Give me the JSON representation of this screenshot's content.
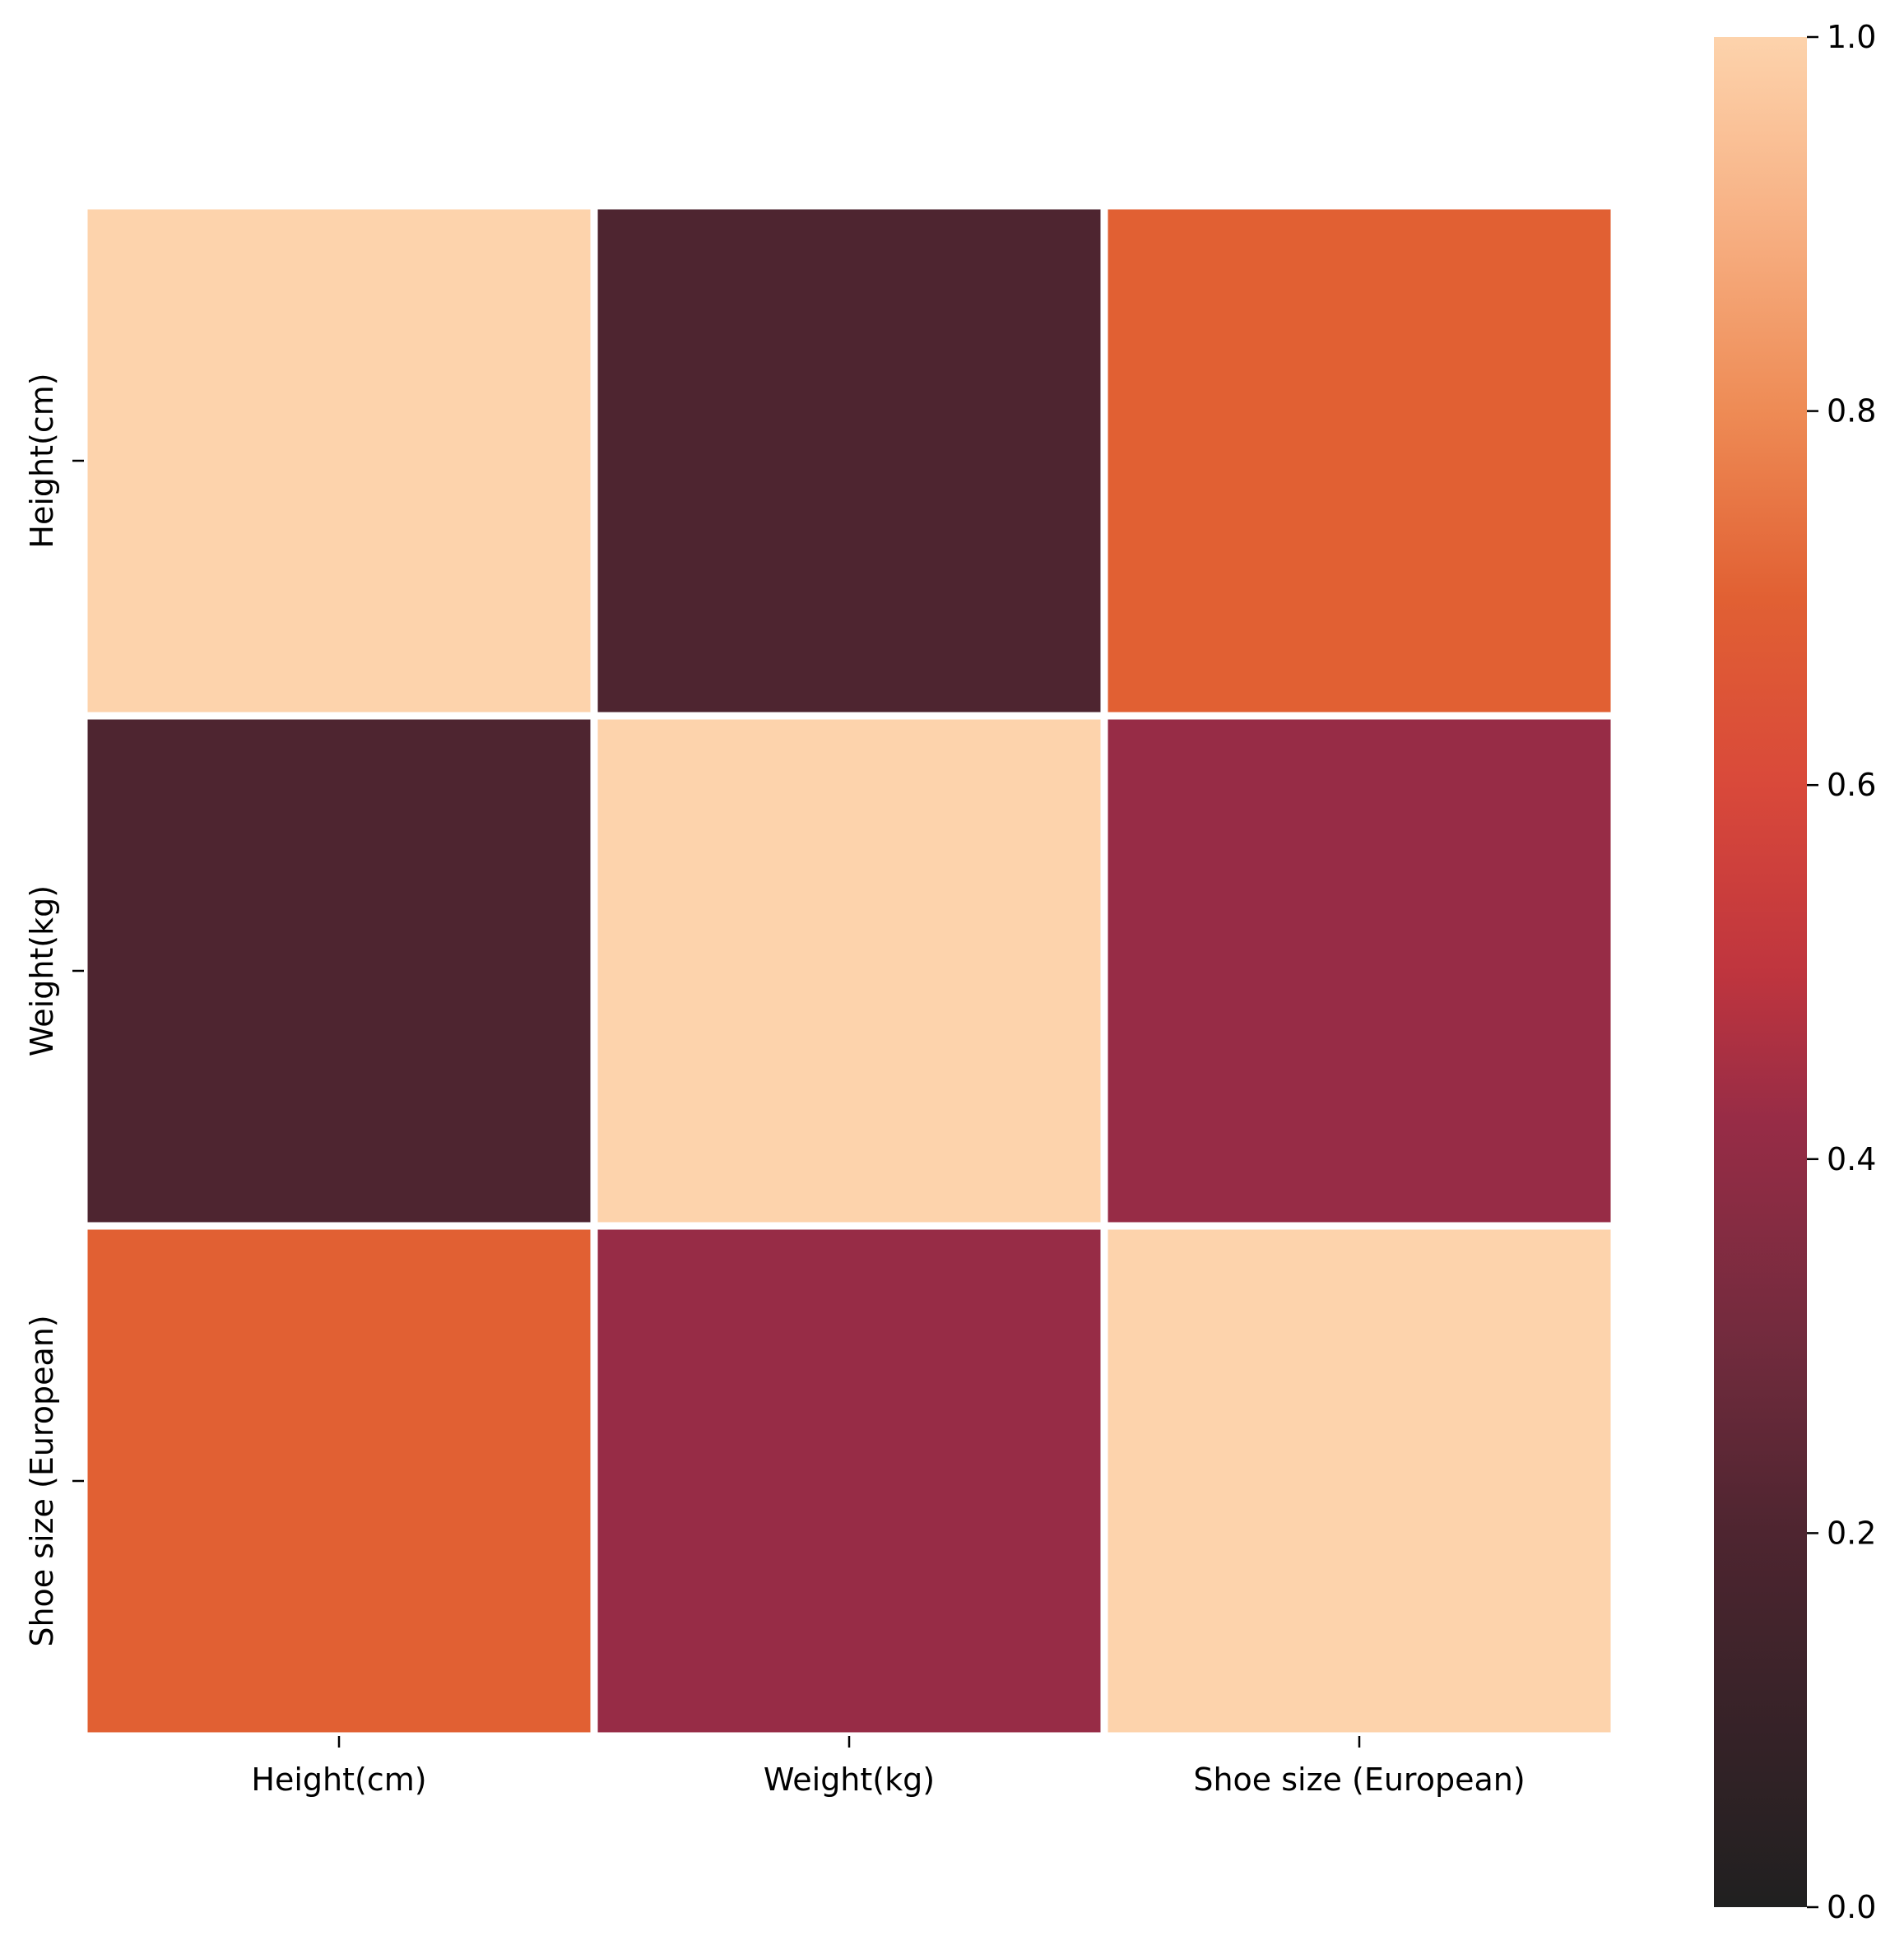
{
  "chart_data": {
    "type": "heatmap",
    "title": "",
    "xlabel": "",
    "ylabel": "",
    "x_categories": [
      "Height(cm)",
      "Weight(kg)",
      "Shoe size (European)"
    ],
    "y_categories": [
      "Height(cm)",
      "Weight(kg)",
      "Shoe size (European)"
    ],
    "values": [
      [
        1.0,
        0.2,
        0.7
      ],
      [
        0.2,
        1.0,
        0.42
      ],
      [
        0.7,
        0.42,
        1.0
      ]
    ],
    "colorbar": {
      "vmin": 0.0,
      "vmax": 1.0,
      "ticks": [
        "0.0",
        "0.2",
        "0.4",
        "0.6",
        "0.8",
        "1.0"
      ]
    },
    "colormap_stops": [
      {
        "value": 0.0,
        "color": "#202020"
      },
      {
        "value": 0.2,
        "color": "#4e2530"
      },
      {
        "value": 0.3,
        "color": "#712b3d"
      },
      {
        "value": 0.42,
        "color": "#972c46"
      },
      {
        "value": 0.5,
        "color": "#bf353e"
      },
      {
        "value": 0.6,
        "color": "#d9493a"
      },
      {
        "value": 0.7,
        "color": "#e16033"
      },
      {
        "value": 0.8,
        "color": "#ee8b55"
      },
      {
        "value": 0.9,
        "color": "#f7b083"
      },
      {
        "value": 1.0,
        "color": "#fdd3ac"
      }
    ]
  }
}
